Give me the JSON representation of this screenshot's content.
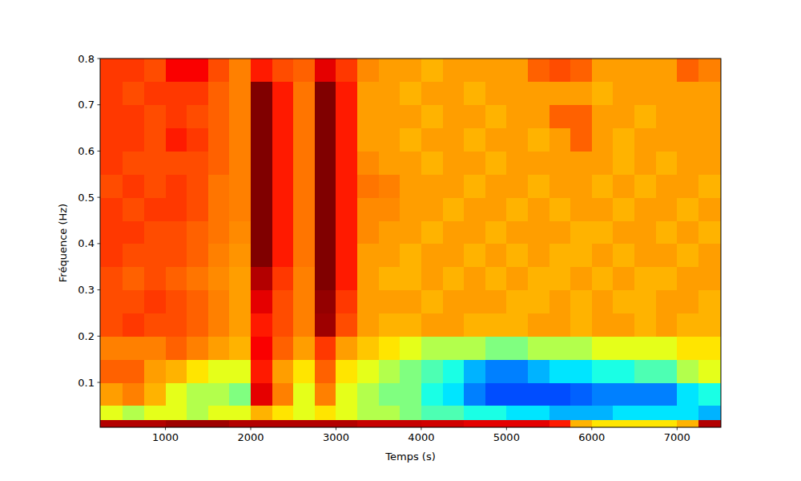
{
  "chart_data": {
    "type": "heatmap",
    "x_label": "Temps (s)",
    "y_label": "Fréquence (Hz)",
    "xlim": [
      234,
      7514
    ],
    "ylim": [
      0.003,
      0.8
    ],
    "xticks": [
      1000,
      2000,
      3000,
      4000,
      5000,
      6000,
      7000
    ],
    "yticks": [
      0.1,
      0.2,
      0.3,
      0.4,
      0.5,
      0.6,
      0.7,
      0.8
    ],
    "zlim": [
      0,
      1
    ],
    "x_edges": [
      234,
      500,
      750,
      1000,
      1250,
      1500,
      1750,
      2000,
      2250,
      2500,
      2750,
      3000,
      3250,
      3500,
      3750,
      4000,
      4250,
      4500,
      4750,
      5000,
      5250,
      5500,
      5750,
      6000,
      6250,
      6500,
      6750,
      7000,
      7250,
      7514
    ],
    "y_edges": [
      0.003,
      0.02,
      0.05,
      0.1,
      0.15,
      0.2,
      0.25,
      0.3,
      0.35,
      0.4,
      0.45,
      0.5,
      0.55,
      0.6,
      0.65,
      0.7,
      0.75,
      0.8
    ],
    "z": [
      [
        0.95,
        0.95,
        0.95,
        0.97,
        0.97,
        0.97,
        0.95,
        0.95,
        0.95,
        0.95,
        0.95,
        0.95,
        0.93,
        0.93,
        0.93,
        0.92,
        0.92,
        0.9,
        0.9,
        0.9,
        0.9,
        0.85,
        0.7,
        0.65,
        0.65,
        0.65,
        0.65,
        0.7,
        0.95
      ],
      [
        0.6,
        0.55,
        0.6,
        0.6,
        0.55,
        0.6,
        0.6,
        0.7,
        0.65,
        0.6,
        0.65,
        0.6,
        0.55,
        0.55,
        0.5,
        0.45,
        0.45,
        0.4,
        0.4,
        0.35,
        0.35,
        0.3,
        0.3,
        0.3,
        0.35,
        0.35,
        0.35,
        0.35,
        0.3
      ],
      [
        0.72,
        0.75,
        0.7,
        0.6,
        0.55,
        0.55,
        0.5,
        0.9,
        0.75,
        0.6,
        0.75,
        0.6,
        0.55,
        0.5,
        0.5,
        0.4,
        0.35,
        0.25,
        0.2,
        0.2,
        0.2,
        0.2,
        0.22,
        0.25,
        0.25,
        0.25,
        0.25,
        0.35,
        0.4
      ],
      [
        0.78,
        0.78,
        0.72,
        0.7,
        0.65,
        0.6,
        0.6,
        0.85,
        0.72,
        0.65,
        0.78,
        0.65,
        0.6,
        0.55,
        0.5,
        0.45,
        0.4,
        0.3,
        0.25,
        0.25,
        0.3,
        0.35,
        0.35,
        0.4,
        0.4,
        0.45,
        0.45,
        0.55,
        0.6
      ],
      [
        0.75,
        0.75,
        0.75,
        0.78,
        0.75,
        0.72,
        0.7,
        0.88,
        0.78,
        0.72,
        0.82,
        0.72,
        0.68,
        0.65,
        0.6,
        0.55,
        0.55,
        0.55,
        0.5,
        0.5,
        0.55,
        0.55,
        0.55,
        0.6,
        0.6,
        0.6,
        0.6,
        0.65,
        0.65
      ],
      [
        0.8,
        0.82,
        0.8,
        0.8,
        0.78,
        0.75,
        0.72,
        0.85,
        0.8,
        0.75,
        0.97,
        0.8,
        0.72,
        0.7,
        0.7,
        0.72,
        0.72,
        0.7,
        0.7,
        0.7,
        0.72,
        0.72,
        0.7,
        0.72,
        0.72,
        0.7,
        0.72,
        0.7,
        0.7
      ],
      [
        0.8,
        0.8,
        0.82,
        0.8,
        0.78,
        0.75,
        0.72,
        0.9,
        0.8,
        0.75,
        0.98,
        0.82,
        0.72,
        0.72,
        0.72,
        0.7,
        0.72,
        0.72,
        0.72,
        0.7,
        0.7,
        0.72,
        0.7,
        0.72,
        0.7,
        0.7,
        0.72,
        0.72,
        0.7
      ],
      [
        0.8,
        0.78,
        0.8,
        0.78,
        0.76,
        0.74,
        0.72,
        0.95,
        0.82,
        0.75,
        1.0,
        0.85,
        0.72,
        0.7,
        0.7,
        0.72,
        0.7,
        0.72,
        0.7,
        0.72,
        0.7,
        0.7,
        0.72,
        0.7,
        0.72,
        0.7,
        0.7,
        0.72,
        0.72
      ],
      [
        0.82,
        0.8,
        0.8,
        0.8,
        0.78,
        0.75,
        0.73,
        1.0,
        0.85,
        0.76,
        1.0,
        0.85,
        0.72,
        0.72,
        0.7,
        0.72,
        0.72,
        0.7,
        0.72,
        0.7,
        0.72,
        0.7,
        0.7,
        0.72,
        0.7,
        0.72,
        0.72,
        0.7,
        0.72
      ],
      [
        0.82,
        0.82,
        0.8,
        0.8,
        0.78,
        0.76,
        0.74,
        1.0,
        0.85,
        0.76,
        1.0,
        0.85,
        0.74,
        0.72,
        0.72,
        0.7,
        0.72,
        0.72,
        0.7,
        0.72,
        0.72,
        0.72,
        0.7,
        0.7,
        0.72,
        0.72,
        0.7,
        0.72,
        0.7
      ],
      [
        0.82,
        0.8,
        0.82,
        0.82,
        0.8,
        0.76,
        0.75,
        1.0,
        0.85,
        0.76,
        1.0,
        0.85,
        0.74,
        0.74,
        0.72,
        0.72,
        0.7,
        0.72,
        0.72,
        0.7,
        0.72,
        0.7,
        0.72,
        0.72,
        0.7,
        0.72,
        0.72,
        0.7,
        0.72
      ],
      [
        0.8,
        0.82,
        0.8,
        0.82,
        0.8,
        0.76,
        0.75,
        1.0,
        0.85,
        0.76,
        1.0,
        0.85,
        0.76,
        0.75,
        0.72,
        0.72,
        0.72,
        0.7,
        0.72,
        0.72,
        0.7,
        0.72,
        0.72,
        0.7,
        0.72,
        0.7,
        0.72,
        0.72,
        0.7
      ],
      [
        0.82,
        0.8,
        0.8,
        0.8,
        0.8,
        0.78,
        0.75,
        1.0,
        0.85,
        0.76,
        1.0,
        0.85,
        0.74,
        0.72,
        0.72,
        0.7,
        0.72,
        0.72,
        0.7,
        0.72,
        0.72,
        0.72,
        0.72,
        0.72,
        0.7,
        0.72,
        0.7,
        0.72,
        0.72
      ],
      [
        0.82,
        0.82,
        0.8,
        0.85,
        0.82,
        0.78,
        0.75,
        1.0,
        0.85,
        0.76,
        1.0,
        0.85,
        0.72,
        0.72,
        0.7,
        0.72,
        0.72,
        0.7,
        0.72,
        0.72,
        0.7,
        0.72,
        0.78,
        0.72,
        0.7,
        0.72,
        0.72,
        0.72,
        0.72
      ],
      [
        0.82,
        0.82,
        0.8,
        0.82,
        0.8,
        0.78,
        0.75,
        1.0,
        0.85,
        0.76,
        1.0,
        0.85,
        0.72,
        0.72,
        0.72,
        0.7,
        0.72,
        0.72,
        0.7,
        0.72,
        0.72,
        0.78,
        0.78,
        0.72,
        0.72,
        0.7,
        0.72,
        0.72,
        0.72
      ],
      [
        0.82,
        0.8,
        0.82,
        0.82,
        0.82,
        0.78,
        0.75,
        1.0,
        0.85,
        0.76,
        1.0,
        0.85,
        0.72,
        0.72,
        0.7,
        0.72,
        0.72,
        0.7,
        0.72,
        0.72,
        0.72,
        0.72,
        0.72,
        0.7,
        0.72,
        0.72,
        0.72,
        0.72,
        0.72
      ],
      [
        0.82,
        0.82,
        0.8,
        0.88,
        0.88,
        0.8,
        0.75,
        0.85,
        0.8,
        0.78,
        0.9,
        0.82,
        0.74,
        0.72,
        0.72,
        0.7,
        0.72,
        0.72,
        0.72,
        0.72,
        0.78,
        0.8,
        0.78,
        0.72,
        0.72,
        0.72,
        0.72,
        0.78,
        0.75
      ]
    ]
  }
}
